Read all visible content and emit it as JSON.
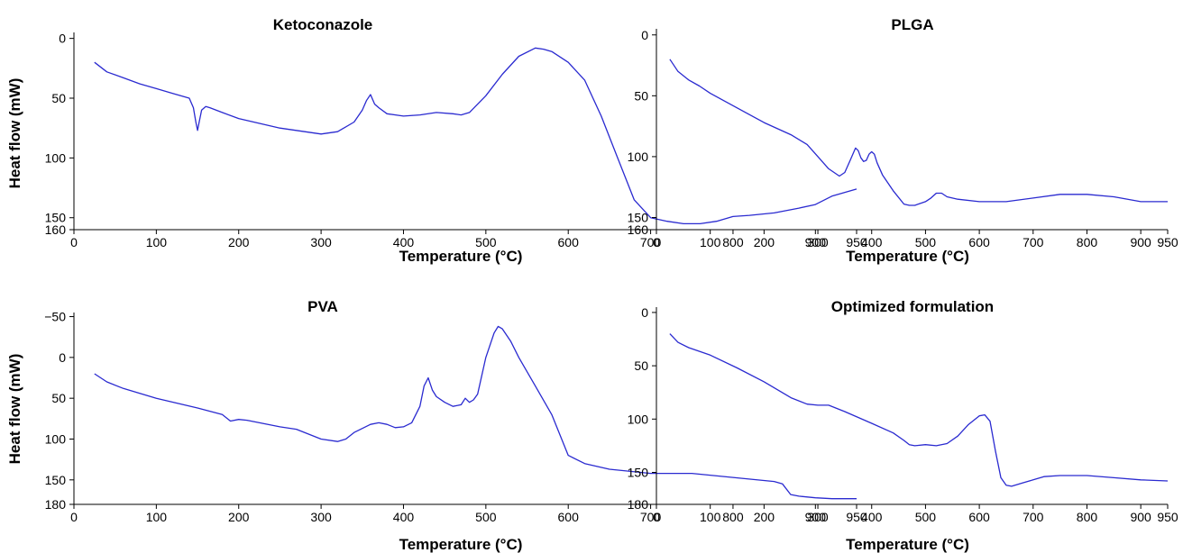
{
  "theme": {
    "line_color": "#2a2ad0",
    "axis_color": "#000000"
  },
  "chart_data": [
    {
      "type": "line",
      "title": "Ketoconazole",
      "xlabel": "Temperature (°C)",
      "ylabel": "Heat flow (mW)",
      "xlim": [
        0,
        950
      ],
      "ylim": [
        160,
        -5
      ],
      "y_inverted": true,
      "xticks": [
        0,
        100,
        200,
        300,
        400,
        500,
        600,
        700,
        800,
        900,
        950
      ],
      "yticks": [
        0,
        50,
        100,
        150,
        160
      ],
      "series": [
        {
          "x": [
            25,
            40,
            60,
            80,
            100,
            120,
            140,
            145,
            148,
            150,
            152,
            155,
            160,
            165,
            180,
            200,
            250,
            300,
            320,
            340,
            350,
            355,
            360,
            365,
            370,
            380,
            400,
            420,
            440,
            460,
            470,
            480,
            500,
            520,
            540,
            560,
            570,
            580,
            600,
            620,
            640,
            660,
            680,
            700,
            720,
            740,
            760,
            780,
            800,
            820,
            850,
            880,
            900,
            920,
            950
          ],
          "y": [
            20,
            28,
            33,
            38,
            42,
            46,
            50,
            58,
            70,
            77,
            70,
            60,
            57,
            58,
            62,
            67,
            75,
            80,
            78,
            70,
            60,
            52,
            47,
            55,
            58,
            63,
            65,
            64,
            62,
            63,
            64,
            62,
            48,
            30,
            15,
            8,
            9,
            11,
            20,
            35,
            65,
            100,
            135,
            150,
            153,
            155,
            155,
            153,
            149,
            148,
            146,
            142,
            139,
            132,
            126
          ]
        }
      ]
    },
    {
      "type": "line",
      "title": "PLGA",
      "xlabel": "Temperature (°C)",
      "ylabel": "",
      "xlim": [
        0,
        950
      ],
      "ylim": [
        160,
        -5
      ],
      "y_inverted": true,
      "xticks": [
        0,
        100,
        200,
        300,
        400,
        500,
        600,
        700,
        800,
        900,
        950
      ],
      "yticks": [
        0,
        50,
        100,
        150,
        160
      ],
      "series": [
        {
          "x": [
            25,
            40,
            60,
            80,
            100,
            150,
            200,
            250,
            280,
            300,
            320,
            340,
            350,
            360,
            370,
            375,
            380,
            385,
            390,
            395,
            400,
            405,
            410,
            420,
            440,
            460,
            470,
            480,
            500,
            510,
            520,
            530,
            540,
            560,
            600,
            650,
            700,
            750,
            800,
            850,
            900,
            920,
            950
          ],
          "y": [
            20,
            30,
            37,
            42,
            48,
            60,
            72,
            82,
            90,
            100,
            110,
            116,
            113,
            103,
            93,
            95,
            101,
            104,
            103,
            98,
            96,
            98,
            105,
            115,
            128,
            139,
            140,
            140,
            137,
            134,
            130,
            130,
            133,
            135,
            137,
            137,
            134,
            131,
            131,
            133,
            137,
            137,
            137
          ]
        }
      ]
    },
    {
      "type": "line",
      "title": "PVA",
      "xlabel": "Temperature (°C)",
      "ylabel": "Heat flow (mW)",
      "xlim": [
        0,
        950
      ],
      "ylim": [
        180,
        -55
      ],
      "y_inverted": true,
      "xticks": [
        0,
        100,
        200,
        300,
        400,
        500,
        600,
        700,
        800,
        900,
        950
      ],
      "yticks": [
        -50,
        0,
        50,
        100,
        150,
        180
      ],
      "series": [
        {
          "x": [
            25,
            40,
            60,
            100,
            150,
            180,
            190,
            200,
            210,
            250,
            270,
            300,
            320,
            330,
            340,
            360,
            370,
            380,
            390,
            400,
            410,
            420,
            425,
            430,
            435,
            440,
            450,
            460,
            470,
            475,
            480,
            485,
            490,
            500,
            510,
            515,
            520,
            530,
            540,
            560,
            580,
            600,
            620,
            650,
            700,
            750,
            800,
            850,
            860,
            870,
            880,
            900,
            920,
            950
          ],
          "y": [
            20,
            30,
            38,
            50,
            62,
            70,
            78,
            76,
            77,
            85,
            88,
            100,
            103,
            100,
            92,
            82,
            80,
            82,
            86,
            85,
            80,
            60,
            35,
            25,
            40,
            48,
            55,
            60,
            58,
            50,
            55,
            52,
            45,
            0,
            -30,
            -38,
            -35,
            -20,
            0,
            35,
            70,
            120,
            130,
            137,
            142,
            142,
            147,
            152,
            155,
            168,
            170,
            172,
            173,
            173
          ]
        }
      ]
    },
    {
      "type": "line",
      "title": "Optimized formulation",
      "xlabel": "Temperature (°C)",
      "ylabel": "",
      "xlim": [
        0,
        950
      ],
      "ylim": [
        180,
        -5
      ],
      "y_inverted": true,
      "xticks": [
        0,
        100,
        200,
        300,
        400,
        500,
        600,
        700,
        800,
        900,
        950
      ],
      "yticks": [
        0,
        50,
        100,
        150,
        180
      ],
      "series": [
        {
          "x": [
            25,
            40,
            60,
            100,
            150,
            200,
            250,
            280,
            300,
            320,
            350,
            400,
            440,
            460,
            470,
            480,
            500,
            520,
            540,
            560,
            580,
            600,
            610,
            620,
            630,
            640,
            650,
            660,
            680,
            700,
            720,
            750,
            800,
            850,
            900,
            950
          ],
          "y": [
            20,
            28,
            33,
            40,
            52,
            65,
            80,
            86,
            87,
            87,
            93,
            104,
            113,
            120,
            124,
            125,
            124,
            125,
            123,
            116,
            105,
            97,
            96,
            102,
            130,
            155,
            162,
            163,
            160,
            157,
            154,
            153,
            153,
            155,
            157,
            158
          ]
        }
      ]
    }
  ]
}
